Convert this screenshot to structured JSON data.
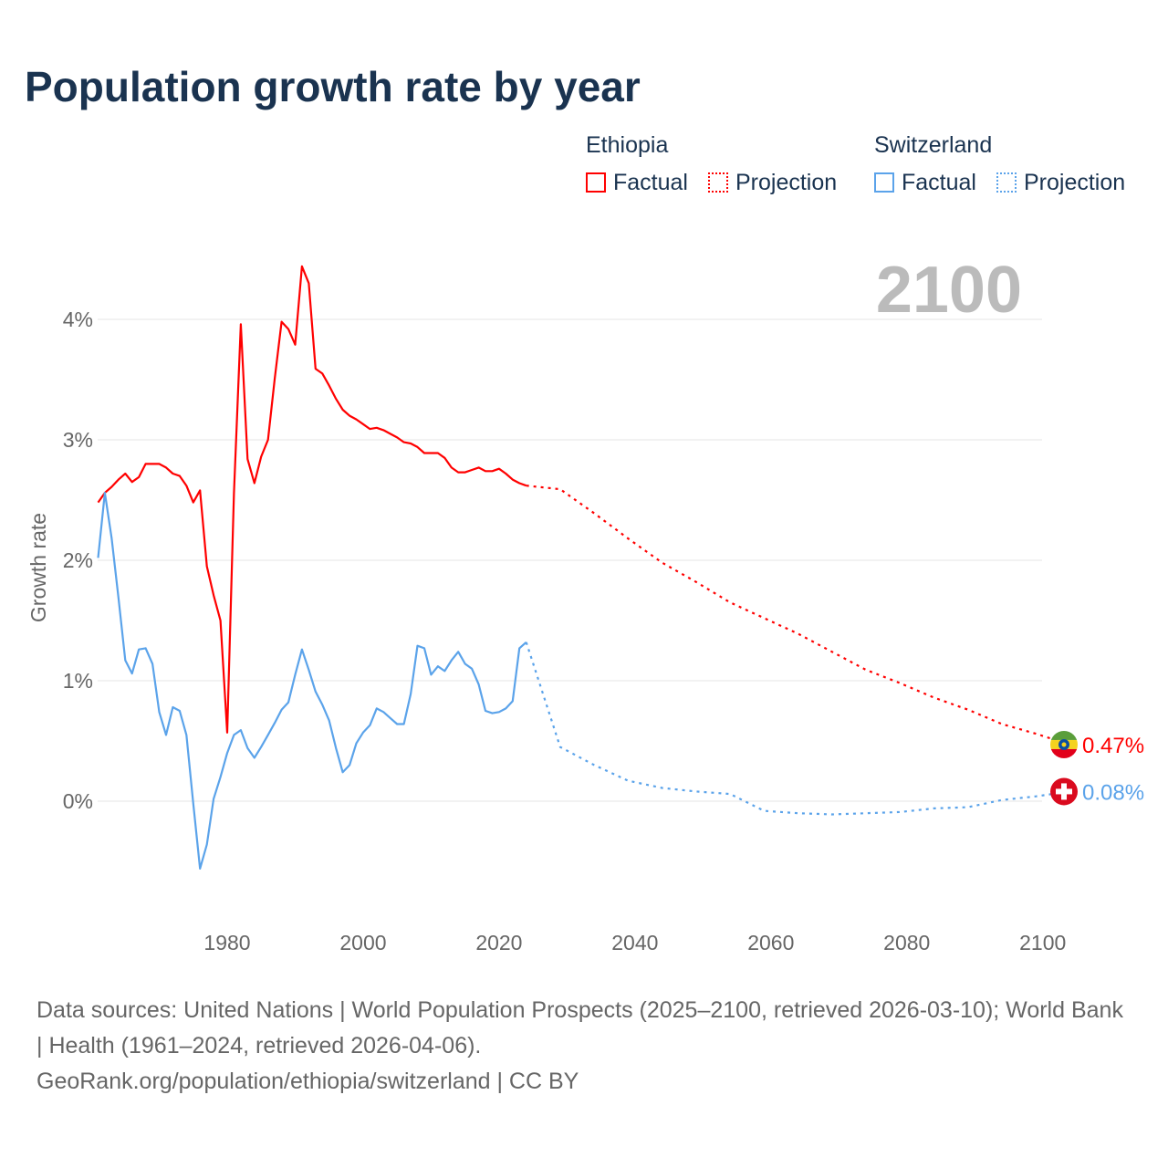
{
  "title": "Population growth rate by year",
  "legend": {
    "ethiopia": "Ethiopia",
    "switzerland": "Switzerland",
    "factual": "Factual",
    "projection": "Projection"
  },
  "footer": {
    "line1": "Data sources: United Nations | World Population Prospects (2025–2100, retrieved 2026-03-10); World Bank | Health (1961–2024, retrieved 2026-04-06).",
    "line2": "GeoRank.org/population/ethiopia/switzerland | CC BY"
  },
  "colors": {
    "ethiopia": "#ff0000",
    "switzerland": "#5ba3ea"
  },
  "chart_data": {
    "type": "line",
    "title": "Population growth rate by year",
    "ylabel": "Growth rate",
    "xlabel": "",
    "year_label": "2100",
    "xlim": [
      1961,
      2100
    ],
    "ylim": [
      -0.9,
      4.6
    ],
    "xticks": [
      1980,
      2000,
      2020,
      2040,
      2060,
      2080,
      2100
    ],
    "yticks": [
      0,
      1,
      2,
      3,
      4
    ],
    "ytick_labels": [
      "0%",
      "1%",
      "2%",
      "3%",
      "4%"
    ],
    "grid": true,
    "series": [
      {
        "name": "Ethiopia",
        "kind": "factual",
        "start_year": 1961,
        "values": [
          2.48,
          2.56,
          2.61,
          2.67,
          2.72,
          2.65,
          2.69,
          2.8,
          2.8,
          2.8,
          2.77,
          2.72,
          2.7,
          2.62,
          2.48,
          2.58,
          1.95,
          1.71,
          1.5,
          0.57,
          2.56,
          3.96,
          2.84,
          2.64,
          2.86,
          3.0,
          3.51,
          3.98,
          3.92,
          3.79,
          4.44,
          4.3,
          3.59,
          3.55,
          3.45,
          3.34,
          3.25,
          3.2,
          3.17,
          3.13,
          3.09,
          3.1,
          3.08,
          3.05,
          3.02,
          2.98,
          2.97,
          2.94,
          2.89,
          2.89,
          2.89,
          2.85,
          2.77,
          2.73,
          2.73,
          2.75,
          2.77,
          2.74,
          2.74,
          2.76,
          2.72,
          2.67,
          2.64,
          2.62
        ]
      },
      {
        "name": "Ethiopia",
        "kind": "projection",
        "start_year": 2024,
        "step": 5,
        "values": [
          2.62,
          2.59,
          2.39,
          2.18,
          1.98,
          1.82,
          1.65,
          1.52,
          1.39,
          1.24,
          1.09,
          0.98,
          0.86,
          0.76,
          0.64,
          0.56,
          0.47
        ]
      },
      {
        "name": "Switzerland",
        "kind": "factual",
        "start_year": 1961,
        "values": [
          2.02,
          2.56,
          2.18,
          1.69,
          1.17,
          1.06,
          1.26,
          1.27,
          1.14,
          0.74,
          0.55,
          0.78,
          0.75,
          0.55,
          -0.02,
          -0.56,
          -0.36,
          0.02,
          0.2,
          0.4,
          0.55,
          0.59,
          0.44,
          0.36,
          0.45,
          0.55,
          0.65,
          0.76,
          0.82,
          1.05,
          1.26,
          1.09,
          0.91,
          0.8,
          0.67,
          0.44,
          0.24,
          0.3,
          0.48,
          0.57,
          0.63,
          0.77,
          0.74,
          0.69,
          0.64,
          0.64,
          0.89,
          1.29,
          1.27,
          1.05,
          1.12,
          1.08,
          1.17,
          1.24,
          1.14,
          1.1,
          0.97,
          0.75,
          0.73,
          0.74,
          0.77,
          0.83,
          1.27,
          1.32
        ]
      },
      {
        "name": "Switzerland",
        "kind": "projection",
        "start_year": 2024,
        "step": 5,
        "values": [
          1.32,
          0.45,
          0.3,
          0.17,
          0.11,
          0.08,
          0.06,
          -0.08,
          -0.1,
          -0.11,
          -0.1,
          -0.09,
          -0.06,
          -0.05,
          0.01,
          0.04,
          0.08
        ]
      }
    ],
    "end_labels": {
      "ethiopia": "0.47%",
      "switzerland": "0.08%"
    }
  }
}
